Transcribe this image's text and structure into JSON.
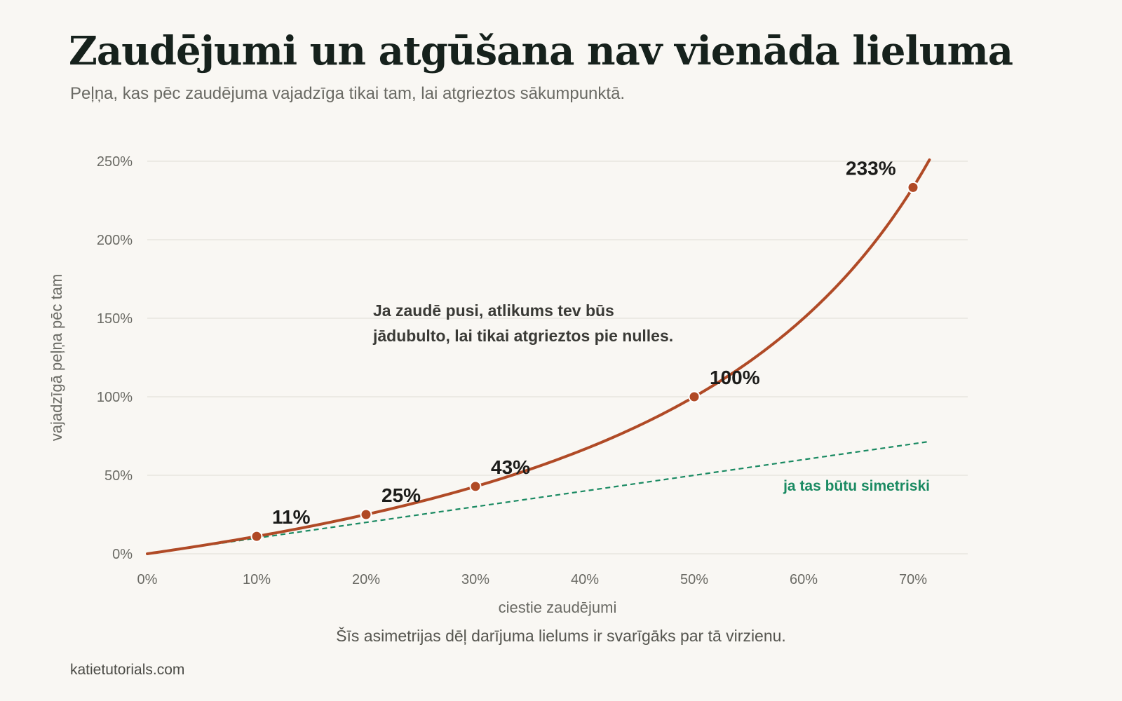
{
  "title": "Zaudējumi un atgūšana nav vienāda lieluma",
  "subtitle": "Peļņa, kas pēc zaudējuma vajadzīga tikai tam, lai atgrieztos sākumpunktā.",
  "caption": "Šīs asimetrijas dēļ darījuma lielums ir svarīgāks par tā virzienu.",
  "source": "katietutorials.com",
  "chart_data": {
    "type": "line",
    "title": "Zaudējumi un atgūšana nav vienāda lieluma",
    "xlabel": "ciestie zaudējumi",
    "ylabel": "vajadzīgā peļņa pēc tam",
    "xlim": [
      0,
      70
    ],
    "ylim": [
      0,
      250
    ],
    "x_ticks": [
      0,
      10,
      20,
      30,
      40,
      50,
      60,
      70
    ],
    "x_tick_labels": [
      "0%",
      "10%",
      "20%",
      "30%",
      "40%",
      "50%",
      "60%",
      "70%"
    ],
    "y_ticks": [
      0,
      50,
      100,
      150,
      200,
      250
    ],
    "y_tick_labels": [
      "0%",
      "50%",
      "100%",
      "150%",
      "200%",
      "250%"
    ],
    "grid": "horizontal",
    "series": [
      {
        "role": "required_gain",
        "color": "#b04a26",
        "style": "solid",
        "formula": "100*x/(100-x)",
        "x_range": [
          0,
          71.5
        ]
      },
      {
        "role": "symmetric_reference",
        "name": "ja tas būtu simetriski",
        "color": "#1a8a62",
        "style": "dashed",
        "formula": "x",
        "x_range": [
          0,
          71.5
        ]
      }
    ],
    "points": [
      {
        "x": 10,
        "y": 11.1,
        "label": "11%"
      },
      {
        "x": 20,
        "y": 25,
        "label": "25%"
      },
      {
        "x": 30,
        "y": 42.9,
        "label": "43%"
      },
      {
        "x": 50,
        "y": 100,
        "label": "100%"
      },
      {
        "x": 70,
        "y": 233.3,
        "label": "233%"
      }
    ],
    "annotation": {
      "lines": [
        "Ja zaudē pusi, atlikums tev būs",
        "jādubulto, lai tikai atgrieztos pie nulles."
      ]
    },
    "colors": {
      "background": "#f9f7f3",
      "curve": "#b04a26",
      "reference": "#1a8a62",
      "grid": "#e4e2dc"
    }
  }
}
